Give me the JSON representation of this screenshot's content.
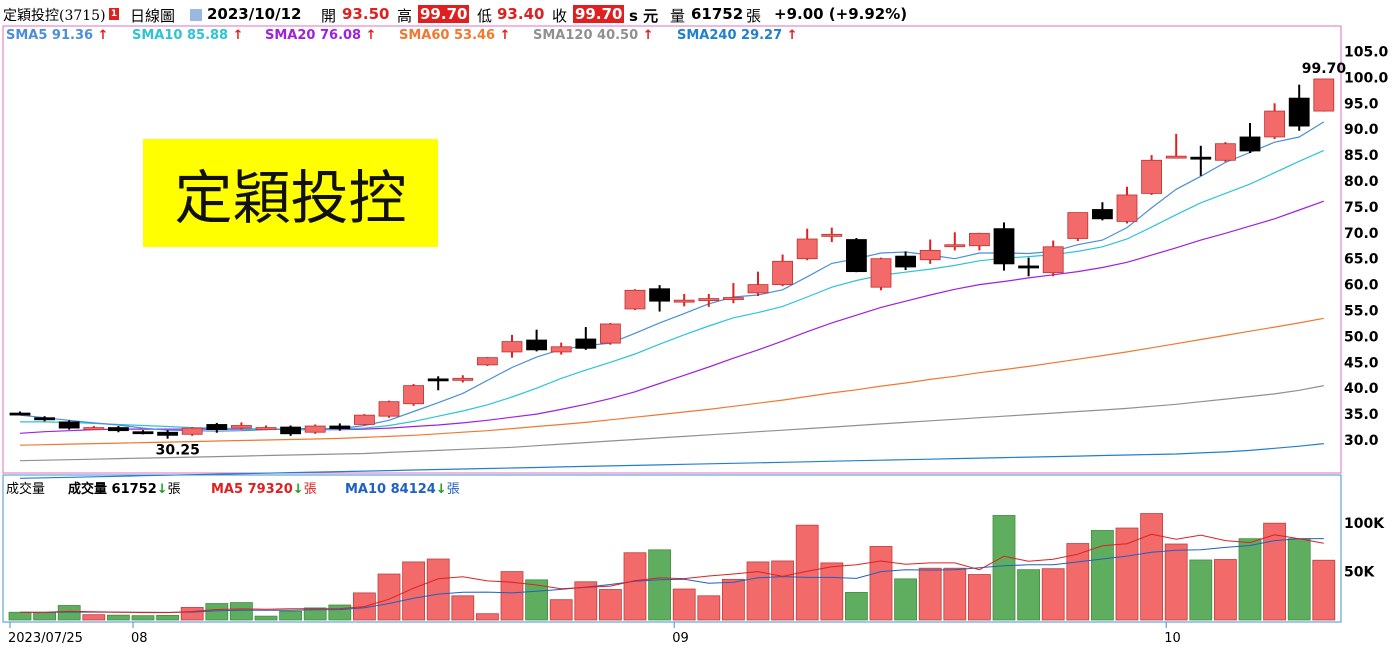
{
  "header": {
    "stock": "定穎投控(3715)",
    "badge": "1",
    "period": "日線圖",
    "date": "2023/10/12",
    "open_label": "開",
    "open": "93.50",
    "high_label": "高",
    "high": "99.70",
    "low_label": "低",
    "low": "93.40",
    "close_label": "收",
    "close": "99.70",
    "unit": "s 元",
    "volume_label": "量",
    "volume": "61752",
    "volume_unit": "張",
    "change": "+9.00 (+9.92%)"
  },
  "sma_legend": [
    {
      "label": "SMA5 91.36",
      "color": "#4a8fd8"
    },
    {
      "label": "SMA10 85.88",
      "color": "#2ec4d4"
    },
    {
      "label": "SMA20 76.08",
      "color": "#a020e0"
    },
    {
      "label": "SMA60 53.46",
      "color": "#f07830"
    },
    {
      "label": "SMA120 40.50",
      "color": "#909090"
    },
    {
      "label": "SMA240 29.27",
      "color": "#2080d0"
    }
  ],
  "volume_legend": {
    "title": "成交量",
    "vol_label": "成交量 61752",
    "vol_unit": "張",
    "ma5_label": "MA5 79320",
    "ma5_unit": "張",
    "ma10_label": "MA10 84124",
    "ma10_unit": "張"
  },
  "banner": "定穎投控",
  "annotations": {
    "high_label": "99.70",
    "low_label": "30.25"
  },
  "colors": {
    "up": "#f26a6a",
    "down": "#000000",
    "vol_up": "#f26a6a",
    "vol_down": "#5fae5f",
    "frame": "#e070c0"
  },
  "chart_data": {
    "type": "candlestick",
    "price_ticks": [
      "30.0",
      "35.0",
      "40.0",
      "45.0",
      "50.0",
      "55.0",
      "60.0",
      "65.0",
      "70.0",
      "75.0",
      "80.0",
      "85.0",
      "90.0",
      "95.0",
      "100.0",
      "105.0"
    ],
    "volume_ticks": [
      "50K",
      "100K"
    ],
    "x_tick_labels": [
      {
        "index": 0,
        "label": "2023/07/25"
      },
      {
        "index": 5,
        "label": "08"
      },
      {
        "index": 27,
        "label": "09"
      },
      {
        "index": 47,
        "label": "10"
      }
    ],
    "candles": [
      {
        "o": 35.2,
        "h": 35.5,
        "l": 34.8,
        "c": 35.0
      },
      {
        "o": 34.3,
        "h": 34.6,
        "l": 33.6,
        "c": 33.9
      },
      {
        "o": 33.5,
        "h": 33.8,
        "l": 32.0,
        "c": 32.3
      },
      {
        "o": 32.4,
        "h": 32.7,
        "l": 32.1,
        "c": 32.4
      },
      {
        "o": 32.4,
        "h": 32.7,
        "l": 31.5,
        "c": 31.8
      },
      {
        "o": 31.6,
        "h": 31.9,
        "l": 31.1,
        "c": 31.4
      },
      {
        "o": 31.5,
        "h": 31.9,
        "l": 30.25,
        "c": 30.9
      },
      {
        "o": 31.1,
        "h": 32.5,
        "l": 30.8,
        "c": 32.3
      },
      {
        "o": 33.0,
        "h": 33.3,
        "l": 31.4,
        "c": 32.0
      },
      {
        "o": 32.3,
        "h": 33.4,
        "l": 32.0,
        "c": 32.8
      },
      {
        "o": 32.2,
        "h": 32.8,
        "l": 31.9,
        "c": 32.4
      },
      {
        "o": 32.5,
        "h": 32.8,
        "l": 30.8,
        "c": 31.2
      },
      {
        "o": 31.5,
        "h": 33.0,
        "l": 31.2,
        "c": 32.7
      },
      {
        "o": 32.7,
        "h": 33.2,
        "l": 31.8,
        "c": 32.2
      },
      {
        "o": 33.0,
        "h": 35.0,
        "l": 32.8,
        "c": 34.8
      },
      {
        "o": 34.6,
        "h": 37.6,
        "l": 34.3,
        "c": 37.4
      },
      {
        "o": 37.0,
        "h": 40.8,
        "l": 36.6,
        "c": 40.5
      },
      {
        "o": 41.8,
        "h": 42.3,
        "l": 39.6,
        "c": 41.5
      },
      {
        "o": 41.9,
        "h": 42.5,
        "l": 41.1,
        "c": 41.9
      },
      {
        "o": 44.5,
        "h": 46.0,
        "l": 44.3,
        "c": 45.9
      },
      {
        "o": 47.0,
        "h": 50.3,
        "l": 45.9,
        "c": 49.0
      },
      {
        "o": 49.3,
        "h": 51.3,
        "l": 47.1,
        "c": 47.4
      },
      {
        "o": 47.0,
        "h": 48.8,
        "l": 46.5,
        "c": 48.0
      },
      {
        "o": 49.5,
        "h": 51.8,
        "l": 47.4,
        "c": 47.7
      },
      {
        "o": 48.7,
        "h": 52.6,
        "l": 48.4,
        "c": 52.4
      },
      {
        "o": 55.3,
        "h": 59.1,
        "l": 55.1,
        "c": 58.9
      },
      {
        "o": 59.2,
        "h": 59.9,
        "l": 54.8,
        "c": 56.8
      },
      {
        "o": 57.0,
        "h": 58.2,
        "l": 55.8,
        "c": 57.0
      },
      {
        "o": 57.0,
        "h": 58.2,
        "l": 55.7,
        "c": 57.3
      },
      {
        "o": 57.2,
        "h": 60.3,
        "l": 56.4,
        "c": 57.5
      },
      {
        "o": 58.4,
        "h": 62.5,
        "l": 57.8,
        "c": 60.0
      },
      {
        "o": 60.0,
        "h": 65.8,
        "l": 59.7,
        "c": 64.5
      },
      {
        "o": 65.0,
        "h": 70.8,
        "l": 64.7,
        "c": 68.8
      },
      {
        "o": 69.6,
        "h": 71.0,
        "l": 68.2,
        "c": 69.7
      },
      {
        "o": 68.7,
        "h": 69.0,
        "l": 62.4,
        "c": 62.5
      },
      {
        "o": 59.5,
        "h": 65.2,
        "l": 58.9,
        "c": 65.0
      },
      {
        "o": 65.5,
        "h": 66.4,
        "l": 62.8,
        "c": 63.4
      },
      {
        "o": 64.8,
        "h": 68.7,
        "l": 64.0,
        "c": 66.6
      },
      {
        "o": 67.5,
        "h": 70.1,
        "l": 66.6,
        "c": 67.7
      },
      {
        "o": 67.5,
        "h": 70.0,
        "l": 66.6,
        "c": 69.9
      },
      {
        "o": 70.8,
        "h": 72.0,
        "l": 62.7,
        "c": 64.0
      },
      {
        "o": 63.6,
        "h": 65.2,
        "l": 61.6,
        "c": 63.5
      },
      {
        "o": 62.3,
        "h": 68.5,
        "l": 61.6,
        "c": 67.3
      },
      {
        "o": 68.9,
        "h": 73.9,
        "l": 68.4,
        "c": 73.9
      },
      {
        "o": 74.5,
        "h": 75.9,
        "l": 72.4,
        "c": 72.7
      },
      {
        "o": 72.2,
        "h": 78.9,
        "l": 71.8,
        "c": 77.3
      },
      {
        "o": 77.6,
        "h": 85.0,
        "l": 77.3,
        "c": 84.0
      },
      {
        "o": 84.8,
        "h": 89.1,
        "l": 84.6,
        "c": 84.8
      },
      {
        "o": 84.6,
        "h": 86.8,
        "l": 81.0,
        "c": 84.5
      },
      {
        "o": 84.0,
        "h": 87.5,
        "l": 83.7,
        "c": 87.2
      },
      {
        "o": 88.5,
        "h": 91.2,
        "l": 85.4,
        "c": 85.8
      },
      {
        "o": 88.5,
        "h": 95.0,
        "l": 88.1,
        "c": 93.5
      },
      {
        "o": 96.0,
        "h": 98.6,
        "l": 89.7,
        "c": 90.6
      },
      {
        "o": 93.5,
        "h": 99.7,
        "l": 93.4,
        "c": 99.7
      }
    ],
    "sma5": [
      34.8,
      34.3,
      33.8,
      33.3,
      32.9,
      32.3,
      31.9,
      31.8,
      31.7,
      31.8,
      32.0,
      32.2,
      32.2,
      32.2,
      32.8,
      33.8,
      35.5,
      37.2,
      39.0,
      41.5,
      44.0,
      46.0,
      47.5,
      48.2,
      48.7,
      50.6,
      52.6,
      54.4,
      56.3,
      57.6,
      58.0,
      59.0,
      61.5,
      64.1,
      65.0,
      66.1,
      66.3,
      65.7,
      65.0,
      66.1,
      66.1,
      66.0,
      66.4,
      67.7,
      68.6,
      71.0,
      74.8,
      78.4,
      80.9,
      83.6,
      85.5,
      87.5,
      88.5,
      91.4
    ],
    "sma10": [
      33.5,
      33.5,
      33.4,
      33.2,
      33.0,
      32.8,
      32.6,
      32.4,
      32.3,
      32.2,
      32.1,
      32.0,
      32.0,
      32.1,
      32.3,
      32.8,
      33.6,
      34.6,
      35.6,
      36.8,
      38.3,
      40.0,
      41.9,
      43.5,
      45.0,
      46.6,
      48.5,
      50.3,
      52.0,
      53.6,
      54.6,
      55.8,
      57.6,
      59.5,
      60.8,
      61.8,
      62.4,
      63.0,
      63.7,
      64.6,
      65.1,
      65.4,
      65.8,
      66.4,
      67.3,
      68.8,
      71.1,
      73.5,
      75.8,
      77.6,
      79.4,
      81.6,
      83.8,
      85.9
    ],
    "sma20": [
      31.3,
      31.6,
      31.8,
      32.0,
      32.1,
      32.1,
      32.1,
      32.1,
      32.1,
      32.1,
      32.1,
      32.0,
      32.0,
      32.0,
      32.1,
      32.3,
      32.6,
      32.9,
      33.3,
      33.8,
      34.4,
      35.0,
      35.9,
      36.9,
      38.0,
      39.3,
      40.9,
      42.5,
      44.1,
      45.8,
      47.4,
      49.1,
      50.9,
      52.6,
      54.1,
      55.6,
      56.8,
      58.0,
      59.1,
      60.0,
      60.6,
      61.3,
      61.9,
      62.5,
      63.3,
      64.3,
      65.7,
      67.1,
      68.6,
      69.9,
      71.3,
      72.7,
      74.4,
      76.1
    ],
    "sma60": [
      29.0,
      29.1,
      29.2,
      29.3,
      29.4,
      29.5,
      29.6,
      29.7,
      29.8,
      29.9,
      30.0,
      30.1,
      30.2,
      30.3,
      30.5,
      30.7,
      30.9,
      31.2,
      31.5,
      31.8,
      32.2,
      32.6,
      33.0,
      33.4,
      33.9,
      34.4,
      34.9,
      35.4,
      35.9,
      36.5,
      37.1,
      37.7,
      38.4,
      39.1,
      39.7,
      40.4,
      41.0,
      41.7,
      42.3,
      43.0,
      43.6,
      44.2,
      44.9,
      45.6,
      46.3,
      47.0,
      47.8,
      48.6,
      49.4,
      50.2,
      51.0,
      51.8,
      52.6,
      53.5
    ],
    "sma120": [
      26.0,
      26.1,
      26.2,
      26.3,
      26.4,
      26.5,
      26.6,
      26.7,
      26.8,
      26.9,
      27.0,
      27.1,
      27.2,
      27.3,
      27.4,
      27.6,
      27.8,
      28.0,
      28.2,
      28.4,
      28.6,
      28.9,
      29.2,
      29.5,
      29.8,
      30.1,
      30.4,
      30.7,
      31.0,
      31.3,
      31.6,
      31.9,
      32.2,
      32.5,
      32.8,
      33.1,
      33.4,
      33.7,
      34.0,
      34.3,
      34.6,
      34.9,
      35.2,
      35.5,
      35.8,
      36.1,
      36.5,
      36.9,
      37.4,
      37.9,
      38.4,
      38.9,
      39.6,
      40.5
    ],
    "sma240": [
      22.6,
      22.7,
      22.8,
      22.9,
      23.0,
      23.1,
      23.2,
      23.3,
      23.4,
      23.5,
      23.6,
      23.7,
      23.8,
      23.9,
      24.0,
      24.1,
      24.2,
      24.3,
      24.4,
      24.5,
      24.6,
      24.7,
      24.8,
      24.9,
      25.0,
      25.1,
      25.2,
      25.3,
      25.4,
      25.5,
      25.6,
      25.7,
      25.8,
      25.9,
      26.0,
      26.1,
      26.2,
      26.3,
      26.4,
      26.5,
      26.6,
      26.7,
      26.8,
      26.9,
      27.0,
      27.1,
      27.2,
      27.3,
      27.5,
      27.7,
      28.0,
      28.4,
      28.8,
      29.3
    ],
    "volume": [
      8000,
      7500,
      15000,
      5500,
      5000,
      4500,
      4800,
      13000,
      17000,
      18000,
      4000,
      9000,
      12500,
      15500,
      28000,
      47500,
      60000,
      63000,
      25000,
      6500,
      50000,
      41500,
      21000,
      39500,
      31500,
      69500,
      72500,
      32000,
      25000,
      42000,
      60000,
      61000,
      98000,
      59000,
      28500,
      76000,
      42500,
      53500,
      53500,
      47000,
      108000,
      52000,
      53000,
      79000,
      92500,
      95000,
      110000,
      78500,
      62000,
      62500,
      84000,
      100000,
      84000,
      61752
    ],
    "volume_dir": [
      "down",
      "down",
      "down",
      "up",
      "down",
      "down",
      "down",
      "up",
      "down",
      "down",
      "down",
      "down",
      "down",
      "down",
      "up",
      "up",
      "up",
      "up",
      "up",
      "up",
      "up",
      "down",
      "up",
      "up",
      "up",
      "up",
      "down",
      "up",
      "up",
      "up",
      "up",
      "up",
      "up",
      "up",
      "down",
      "up",
      "down",
      "up",
      "up",
      "up",
      "down",
      "down",
      "up",
      "up",
      "down",
      "up",
      "up",
      "up",
      "down",
      "up",
      "down",
      "up",
      "down",
      "up"
    ],
    "vol_ma5": [
      8000,
      8000,
      9000,
      8500,
      8200,
      7600,
      7600,
      8800,
      10800,
      11500,
      11200,
      11600,
      11700,
      11800,
      13800,
      21500,
      32800,
      42600,
      44700,
      40400,
      39000,
      36200,
      32200,
      33700,
      35000,
      40700,
      43500,
      42800,
      45500,
      47500,
      50000,
      45000,
      50400,
      55000,
      57000,
      61000,
      57500,
      59000,
      59000,
      52000,
      65800,
      60600,
      62800,
      68000,
      76700,
      78800,
      88500,
      83400,
      87700,
      82000,
      80000,
      88000,
      84000,
      79320
    ],
    "vol_ma10": [
      7800,
      7800,
      8200,
      8200,
      8100,
      8000,
      7900,
      8200,
      9500,
      10000,
      10000,
      10000,
      10500,
      10700,
      12600,
      17000,
      22400,
      26800,
      28700,
      28800,
      28000,
      29800,
      31600,
      34000,
      36700,
      40100,
      41600,
      42000,
      38000,
      39000,
      43600,
      44800,
      44000,
      44000,
      43000,
      50000,
      52000,
      51500,
      52000,
      54000,
      56000,
      57000,
      57000,
      60000,
      63000,
      66000,
      70000,
      72000,
      72500,
      75000,
      77000,
      82000,
      84000,
      84124
    ]
  }
}
